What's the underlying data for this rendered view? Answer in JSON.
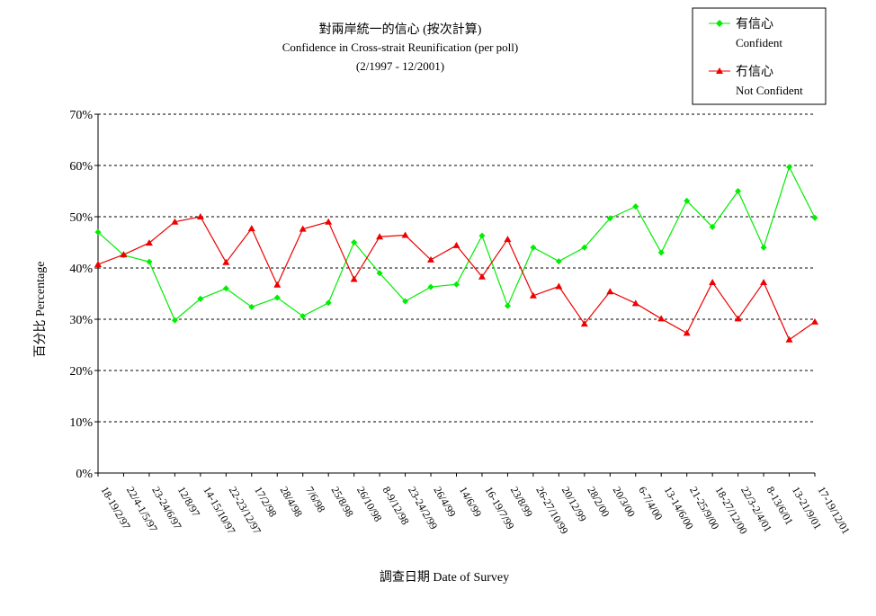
{
  "chart_data": {
    "type": "line",
    "title": "對兩岸統一的信心 (按次計算)",
    "subtitle": "Confidence in Cross-strait Reunification (per poll)",
    "period": "(2/1997 - 12/2001)",
    "xlabel": "調查日期 Date of Survey",
    "ylabel": "百分比 Percentage",
    "ylim": [
      0,
      70
    ],
    "yticks": [
      "0%",
      "10%",
      "20%",
      "30%",
      "40%",
      "50%",
      "60%",
      "70%"
    ],
    "grid": true,
    "legend_position": "top-right",
    "categories": [
      "18-19/2/97",
      "22/4-1/5/97",
      "23-24/6/97",
      "12/8/97",
      "14-15/10/97",
      "22-23/12/97",
      "17/2/98",
      "28/4/98",
      "7/6/98",
      "25/8/98",
      "26/10/98",
      "8-9/12/98",
      "23-24/2/99",
      "26/4/99",
      "14/6/99",
      "16-19/7/99",
      "23/8/99",
      "26-27/10/99",
      "20/12/99",
      "28/2/00",
      "20/3/00",
      "6-7/4/00",
      "13-14/6/00",
      "21-25/9/00",
      "18-27/12/00",
      "22/3-2/4/01",
      "8-13/6/01",
      "13-21/9/01",
      "17-19/12/01"
    ],
    "series": [
      {
        "name": "有信心",
        "name_en": "Confident",
        "color": "#00ee00",
        "marker": "diamond",
        "values": [
          47,
          42.5,
          41.2,
          29.8,
          34,
          36,
          32.4,
          34.2,
          30.6,
          33.2,
          45,
          39,
          33.5,
          36.3,
          36.8,
          46.3,
          32.6,
          44,
          41.3,
          44,
          49.7,
          52,
          43,
          53.1,
          48,
          55,
          44,
          59.7,
          49.8
        ]
      },
      {
        "name": "冇信心",
        "name_en": "Not Confident",
        "color": "#ee0000",
        "marker": "triangle",
        "values": [
          40.7,
          42.6,
          44.9,
          49,
          50,
          41.1,
          47.7,
          36.7,
          47.6,
          49,
          37.8,
          46.1,
          46.4,
          41.6,
          44.4,
          38.3,
          45.6,
          34.6,
          36.4,
          29.1,
          35.4,
          33.1,
          30.1,
          27.3,
          37.2,
          30.1,
          37.2,
          26,
          29.5
        ]
      }
    ]
  }
}
